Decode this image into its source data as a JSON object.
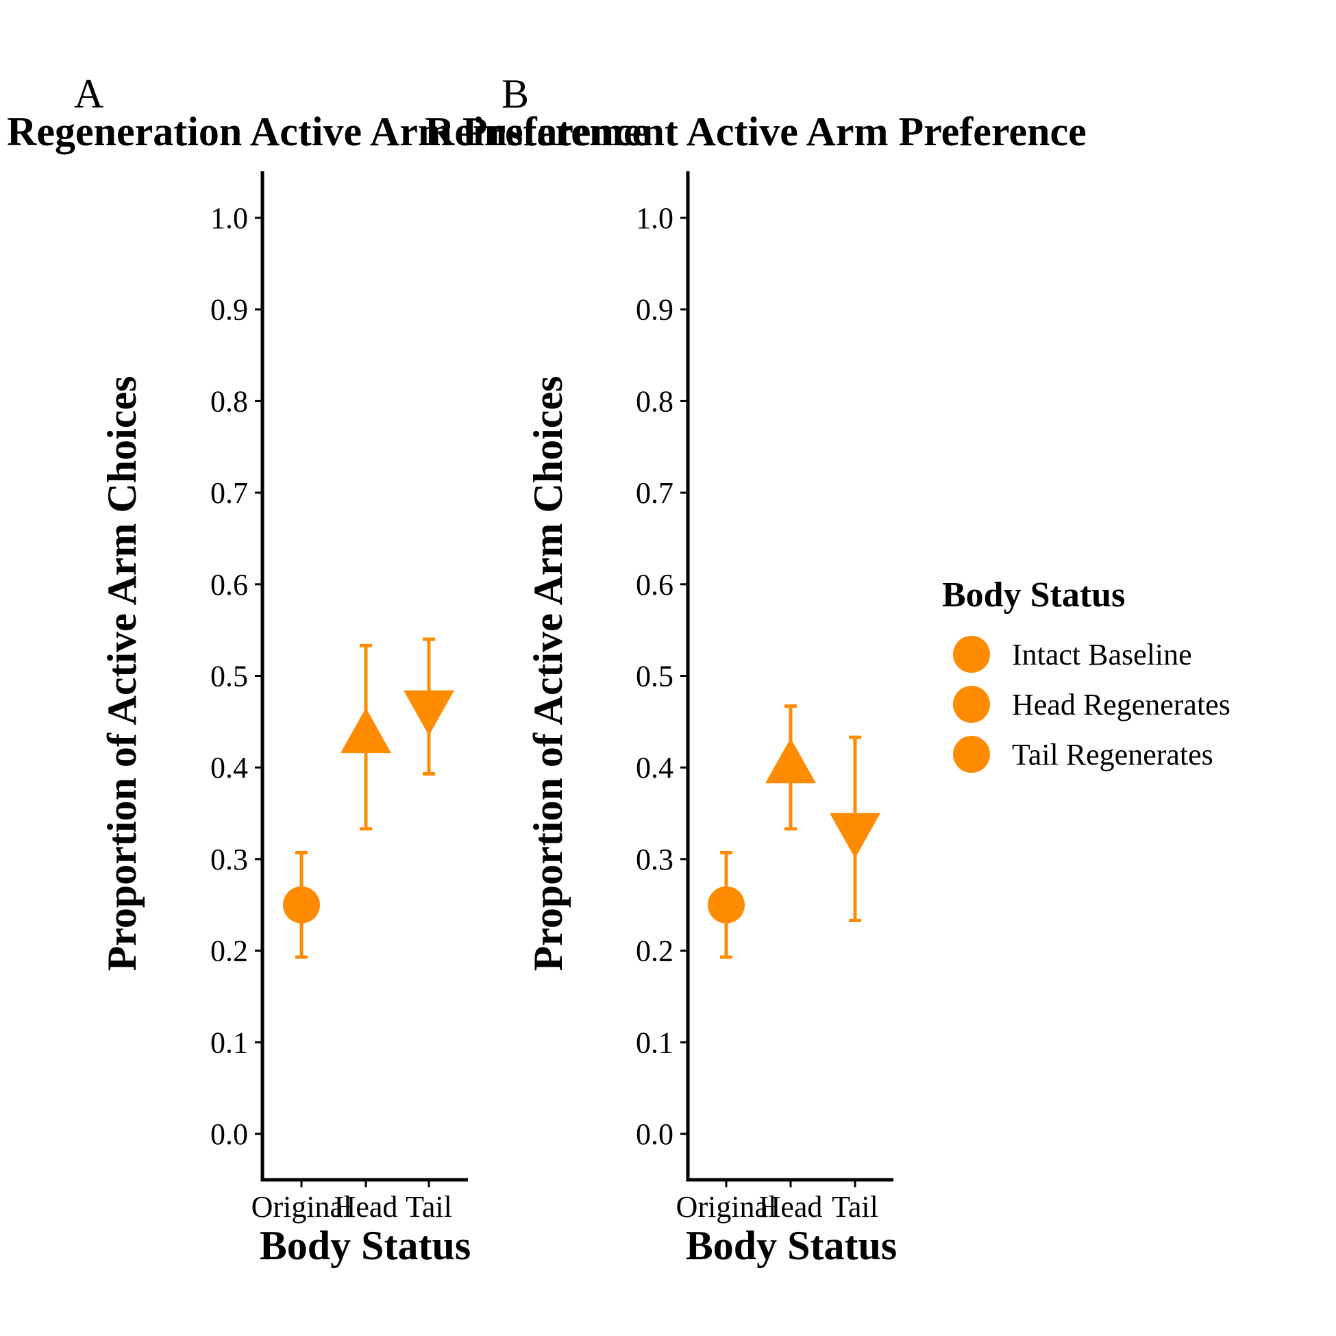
{
  "colors": {
    "accent": "#FF8C00",
    "axis": "#000000"
  },
  "chart_data": [
    {
      "panel_label": "A",
      "type": "scatter",
      "title": "Regeneration Active Arm Preference",
      "xlabel": "Body Status",
      "ylabel": "Proportion of Active Arm Choices",
      "categories": [
        "Original",
        "Head",
        "Tail"
      ],
      "ylim": [
        -0.05,
        1.05
      ],
      "yticks": [
        "0.0",
        "0.1",
        "0.2",
        "0.3",
        "0.4",
        "0.5",
        "0.6",
        "0.7",
        "0.8",
        "0.9",
        "1.0"
      ],
      "grid": false,
      "points": [
        {
          "category": "Original",
          "series": "Intact Baseline",
          "shape": "circle",
          "y": 0.25,
          "ymin": 0.193,
          "ymax": 0.307
        },
        {
          "category": "Head",
          "series": "Head Regenerates",
          "shape": "triangle-up",
          "y": 0.433,
          "ymin": 0.333,
          "ymax": 0.533
        },
        {
          "category": "Tail",
          "series": "Tail Regenerates",
          "shape": "triangle-down",
          "y": 0.467,
          "ymin": 0.393,
          "ymax": 0.54
        }
      ]
    },
    {
      "panel_label": "B",
      "type": "scatter",
      "title": "Reinstatement Active Arm Preference",
      "xlabel": "Body Status",
      "ylabel": "Proportion of Active Arm Choices",
      "categories": [
        "Original",
        "Head",
        "Tail"
      ],
      "ylim": [
        -0.05,
        1.05
      ],
      "yticks": [
        "0.0",
        "0.1",
        "0.2",
        "0.3",
        "0.4",
        "0.5",
        "0.6",
        "0.7",
        "0.8",
        "0.9",
        "1.0"
      ],
      "grid": false,
      "points": [
        {
          "category": "Original",
          "series": "Intact Baseline",
          "shape": "circle",
          "y": 0.25,
          "ymin": 0.193,
          "ymax": 0.307
        },
        {
          "category": "Head",
          "series": "Head Regenerates",
          "shape": "triangle-up",
          "y": 0.4,
          "ymin": 0.333,
          "ymax": 0.467
        },
        {
          "category": "Tail",
          "series": "Tail Regenerates",
          "shape": "triangle-down",
          "y": 0.333,
          "ymin": 0.233,
          "ymax": 0.433
        }
      ]
    }
  ],
  "legend": {
    "title": "Body Status",
    "position": "right",
    "items": [
      {
        "label": "Intact Baseline",
        "shape": "circle"
      },
      {
        "label": "Head Regenerates",
        "shape": "circle"
      },
      {
        "label": "Tail Regenerates",
        "shape": "circle"
      }
    ]
  }
}
